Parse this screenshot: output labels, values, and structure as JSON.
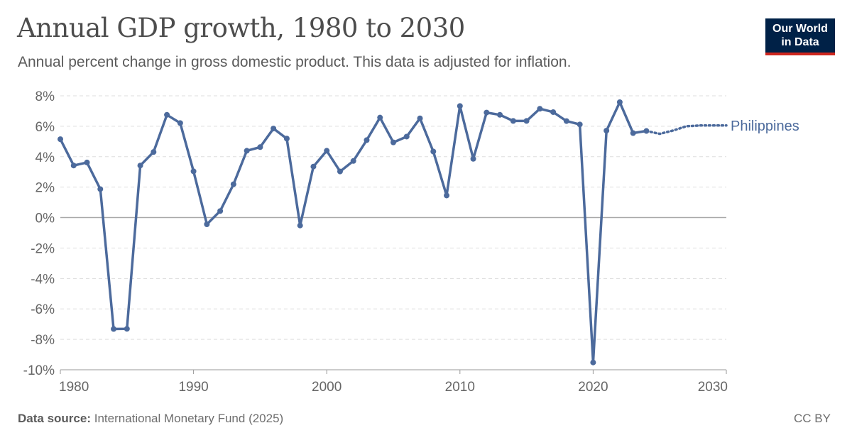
{
  "header": {
    "title": "Annual GDP growth, 1980 to 2030",
    "subtitle": "Annual percent change in gross domestic product. This data is adjusted for inflation."
  },
  "logo": {
    "line1": "Our World",
    "line2": "in Data"
  },
  "footer": {
    "source_label": "Data source:",
    "source_text": "International Monetary Fund (2025)",
    "license": "CC BY"
  },
  "colors": {
    "series": "#4c6a9c",
    "grid": "#dddddd",
    "zero_line": "#a9a9a9",
    "axis": "#999999"
  },
  "chart_data": {
    "type": "line",
    "title": "Annual GDP growth, 1980 to 2030",
    "subtitle": "Annual percent change in gross domestic product. This data is adjusted for inflation.",
    "xlabel": "",
    "ylabel": "",
    "xlim": [
      1980,
      2030
    ],
    "ylim": [
      -10,
      8
    ],
    "x_ticks": [
      1980,
      1990,
      2000,
      2010,
      2020,
      2030
    ],
    "x_tick_labels": [
      "1980",
      "1990",
      "2000",
      "2010",
      "2020",
      "2030"
    ],
    "y_ticks": [
      -10,
      -8,
      -6,
      -4,
      -2,
      0,
      2,
      4,
      6,
      8
    ],
    "y_tick_labels": [
      "-10%",
      "-8%",
      "-6%",
      "-4%",
      "-2%",
      "0%",
      "2%",
      "4%",
      "6%",
      "8%"
    ],
    "grid": true,
    "legend": "end-of-line label",
    "series": [
      {
        "name": "Philippines",
        "x": [
          1980,
          1981,
          1982,
          1983,
          1984,
          1985,
          1986,
          1987,
          1988,
          1989,
          1990,
          1991,
          1992,
          1993,
          1994,
          1995,
          1996,
          1997,
          1998,
          1999,
          2000,
          2001,
          2002,
          2003,
          2004,
          2005,
          2006,
          2007,
          2008,
          2009,
          2010,
          2011,
          2012,
          2013,
          2014,
          2015,
          2016,
          2017,
          2018,
          2019,
          2020,
          2021,
          2022,
          2023,
          2024
        ],
        "values": [
          5.15,
          3.42,
          3.62,
          1.87,
          -7.32,
          -7.31,
          3.42,
          4.31,
          6.75,
          6.21,
          3.04,
          -0.44,
          0.43,
          2.19,
          4.39,
          4.63,
          5.85,
          5.19,
          -0.52,
          3.35,
          4.39,
          3.03,
          3.72,
          5.09,
          6.57,
          4.94,
          5.32,
          6.52,
          4.34,
          1.45,
          7.33,
          3.86,
          6.9,
          6.75,
          6.35,
          6.35,
          7.15,
          6.93,
          6.34,
          6.12,
          -9.52,
          5.71,
          7.58,
          5.55,
          5.69
        ],
        "projection": {
          "style": "dotted",
          "x": [
            2024,
            2025,
            2026,
            2027,
            2028,
            2029,
            2030
          ],
          "values": [
            5.69,
            5.5,
            5.72,
            6.0,
            6.05,
            6.05,
            6.05
          ]
        }
      }
    ]
  }
}
